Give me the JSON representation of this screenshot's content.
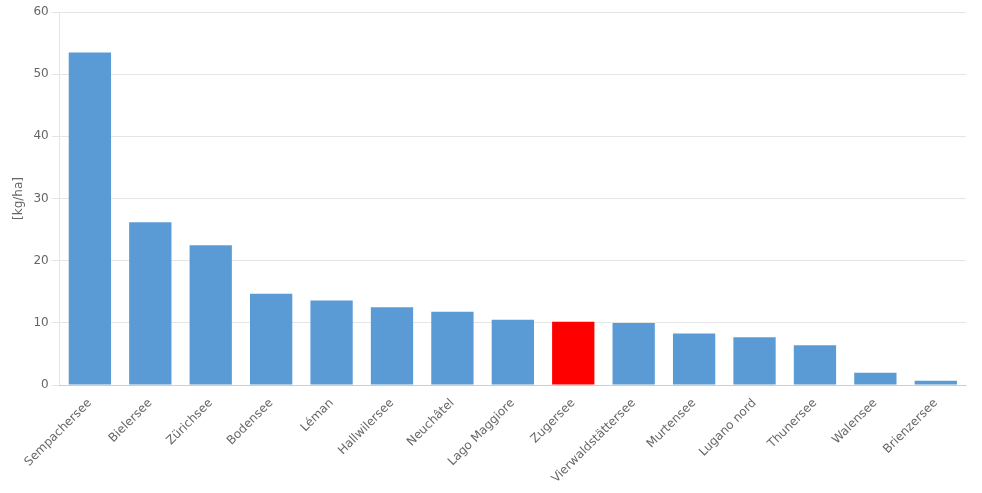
{
  "chart_data": {
    "type": "bar",
    "categories": [
      "Sempachersee",
      "Bielersee",
      "Zürichsee",
      "Bodensee",
      "Léman",
      "Hallwilersee",
      "Neuchâtel",
      "Lago Maggiore",
      "Zugersee",
      "Vierwaldstättersee",
      "Murtensee",
      "Lugano nord",
      "Thunersee",
      "Walensee",
      "Brienzersee"
    ],
    "values": [
      53.5,
      26.2,
      22.5,
      14.7,
      13.6,
      12.5,
      11.8,
      10.5,
      10.2,
      10.0,
      8.3,
      7.7,
      6.4,
      2.0,
      0.7
    ],
    "colors": [
      "#5B9BD5",
      "#5B9BD5",
      "#5B9BD5",
      "#5B9BD5",
      "#5B9BD5",
      "#5B9BD5",
      "#5B9BD5",
      "#5B9BD5",
      "#FF0000",
      "#5B9BD5",
      "#5B9BD5",
      "#5B9BD5",
      "#5B9BD5",
      "#5B9BD5",
      "#5B9BD5"
    ],
    "ylabel": "[kg/ha]",
    "ylim": [
      0,
      60
    ],
    "yticks": [
      0,
      10,
      20,
      30,
      40,
      50,
      60
    ],
    "grid": true
  }
}
